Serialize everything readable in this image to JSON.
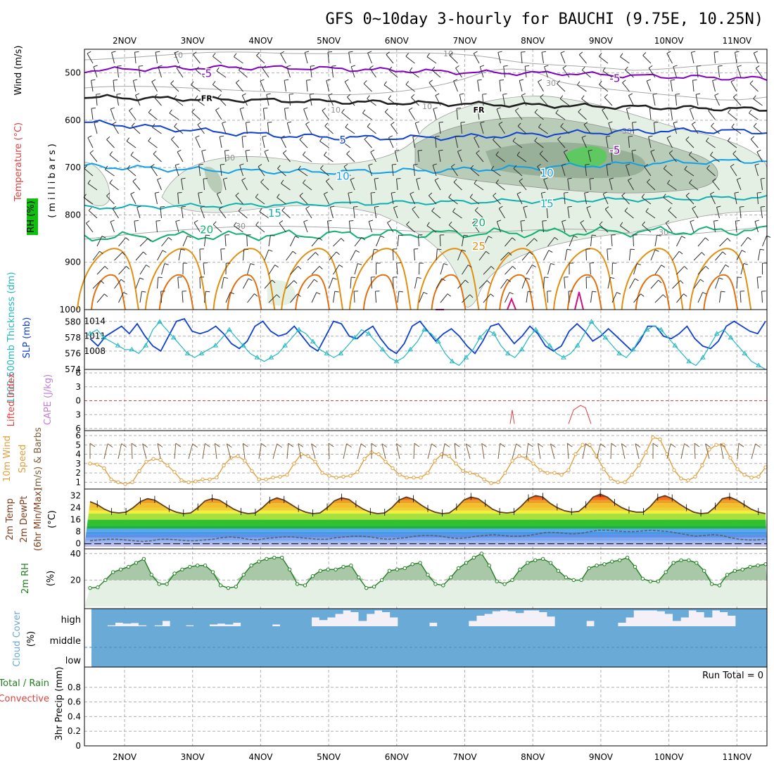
{
  "title": "GFS 0~10day 3-hourly for BAUCHI (9.75E, 10.25N)",
  "date_labels": [
    "2NOV",
    "3NOV",
    "4NOV",
    "5NOV",
    "6NOV",
    "7NOV",
    "8NOV",
    "9NOV",
    "10NOV",
    "11NOV"
  ],
  "colors": {
    "purple": "#8000c0",
    "blue": "#1040d0",
    "lightblue": "#10a0e8",
    "teal": "#10b0b0",
    "green": "#10b070",
    "orange": "#e09010",
    "darkorange": "#e07010",
    "magenta": "#d01080",
    "cyan": "#20b8c0",
    "wind": "#806040",
    "wind10": "#e0a040",
    "rh": "#208020",
    "cloud": "#6aaad6",
    "lifted": "#e04040",
    "cape": "#c080d0"
  },
  "chart_data": [
    {
      "type": "contour",
      "name": "upper_air",
      "ylabel": "(millibars)",
      "y_axis_title_parts": [
        {
          "text": "Wind (m/s)",
          "color": "#000000"
        },
        {
          "text": "Temperature (°C)",
          "color": "#e04040"
        },
        {
          "text": "RH (%)",
          "color": "#208020"
        }
      ],
      "yticks": [
        500,
        600,
        700,
        800,
        900,
        1000
      ],
      "ylim": [
        450,
        1000
      ],
      "temperature_labels": [
        {
          "label": "-5",
          "p": 500,
          "time": "3NOV"
        },
        {
          "label": "-5",
          "p": 510,
          "time": "9NOV"
        },
        {
          "label": "FR",
          "p": 550,
          "time": "3NOV"
        },
        {
          "label": "FR",
          "p": 575,
          "time": "7NOV"
        },
        {
          "label": "5",
          "p": 640,
          "time": "5NOV"
        },
        {
          "label": "-5",
          "p": 662,
          "time": "9NOV"
        },
        {
          "label": "10",
          "p": 717,
          "time": "5NOV"
        },
        {
          "label": "10",
          "p": 710,
          "time": "8NOV"
        },
        {
          "label": "15",
          "p": 795,
          "time": "4NOV"
        },
        {
          "label": "15",
          "p": 775,
          "time": "8NOV"
        },
        {
          "label": "20",
          "p": 830,
          "time": "3NOV"
        },
        {
          "label": "20",
          "p": 815,
          "time": "7NOV"
        },
        {
          "label": "25",
          "p": 865,
          "time": "7NOV"
        }
      ],
      "rh_labels": [
        "10",
        "10",
        "10",
        "10",
        "30",
        "30",
        "30",
        "30",
        "30"
      ]
    },
    {
      "type": "line",
      "name": "thickness_slp",
      "ylabel_left": "1000-500mb Thickness (dm)",
      "ylabel_right": "SLP (mb)",
      "thickness_ticks": [
        574,
        576,
        578,
        580
      ],
      "slp_ticks": [
        1008,
        1011,
        1014
      ],
      "thickness_range": [
        574,
        581
      ],
      "slp_series": [
        1010.5,
        1009,
        1011,
        1012,
        1013,
        1011.5,
        1013.5,
        1011,
        1009,
        1008,
        1011,
        1014,
        1014.5,
        1012,
        1011.5,
        1012,
        1013,
        1011.5,
        1009.5,
        1008.5,
        1010,
        1013,
        1014,
        1012,
        1011,
        1011.5,
        1013,
        1011,
        1009,
        1008,
        1011,
        1014,
        1013.5,
        1011,
        1010.5,
        1012,
        1013,
        1010.5,
        1008.5,
        1007.5,
        1009.5,
        1013,
        1014,
        1012,
        1010,
        1011.5,
        1012.5,
        1011,
        1009,
        1007.5,
        1010,
        1013,
        1013.5,
        1011.5,
        1009.5,
        1011,
        1013,
        1011.5,
        1009,
        1008,
        1009,
        1012,
        1013.5,
        1012,
        1010,
        1011,
        1012.5,
        1011,
        1009.5,
        1008,
        1010,
        1013,
        1013,
        1011,
        1010.5,
        1011.5,
        1013,
        1010.5,
        1009,
        1008.5,
        1010,
        1013,
        1014,
        1013,
        1012,
        1011.5,
        1014
      ],
      "thickness_series": [
        578.5,
        579,
        578,
        577.5,
        577,
        576.5,
        576.5,
        576,
        577,
        579,
        580,
        579,
        578,
        577,
        576,
        575.5,
        576,
        576.5,
        577,
        578,
        579,
        578,
        577,
        576,
        575.5,
        575,
        575.5,
        576,
        577,
        578,
        579,
        578.5,
        577.5,
        576.5,
        576,
        575.5,
        576,
        577,
        578,
        579,
        578.5,
        577.5,
        576.5,
        575.5,
        575,
        575.5,
        576.5,
        577.5,
        579,
        578.5,
        577.5,
        576,
        575,
        574.5,
        575.5,
        576.5,
        578,
        579,
        578.5,
        577,
        576,
        575.5,
        576.5,
        578,
        579,
        578,
        577,
        576,
        575.5,
        576,
        577,
        578.5,
        580,
        579,
        578,
        577,
        576,
        575.5,
        576.5,
        578,
        579,
        579.5,
        579,
        578,
        577,
        576,
        575,
        574.5,
        575.5,
        577,
        578.5,
        579,
        578,
        577,
        576,
        575,
        574.5,
        574
      ]
    },
    {
      "type": "line",
      "name": "lifted_index_cape",
      "ylabel_left": "Lifted Index",
      "ylabel_right": "CAPE (J/kg)",
      "yticks_labels": [
        "6",
        "3",
        "0",
        "3",
        "6"
      ],
      "ylim": [
        -6,
        6
      ],
      "lifted_index_spike_values": [
        5,
        2,
        1,
        1.5,
        5
      ],
      "zero_line": 0
    },
    {
      "type": "line",
      "name": "wind10m",
      "ylabel": "10m Wind Speed & Barbs (m/s)",
      "yticks": [
        1,
        2,
        3,
        4,
        5,
        6
      ],
      "ylim": [
        0.5,
        6.3
      ],
      "values": [
        3.0,
        2.9,
        2.5,
        1.3,
        1.0,
        0.8,
        1.0,
        2.2,
        3.2,
        3.5,
        3.4,
        2.8,
        2.1,
        1.2,
        1.0,
        1.1,
        1.3,
        1.3,
        1.5,
        2.8,
        3.6,
        3.8,
        3.3,
        2.2,
        1.3,
        1.3,
        1.5,
        1.6,
        1.8,
        3.0,
        4.0,
        3.8,
        3.2,
        2.0,
        1.7,
        1.5,
        1.6,
        1.7,
        2.1,
        3.5,
        4.2,
        4.0,
        3.2,
        2.5,
        1.8,
        1.5,
        1.5,
        1.5,
        2.0,
        3.3,
        4.0,
        3.8,
        3.0,
        2.2,
        2.0,
        1.8,
        1.3,
        0.9,
        1.0,
        2.0,
        3.3,
        3.8,
        3.6,
        3.0,
        2.3,
        2.0,
        2.0,
        1.8,
        2.3,
        4.0,
        5.0,
        5.0,
        3.8,
        2.4,
        1.4,
        1.0,
        1.0,
        1.8,
        2.8,
        4.2,
        5.8,
        5.6,
        4.0,
        2.3,
        1.4,
        1.2,
        1.6,
        2.8,
        4.5,
        5.0,
        5.0,
        3.6,
        2.4,
        1.8,
        1.5,
        1.6,
        2.6
      ]
    },
    {
      "type": "area",
      "name": "temp_dewpoint",
      "ylabel": "2m Temp 2m DewPt (6hr Min/Max) (°C)",
      "yticks": [
        0,
        8,
        16,
        24,
        32
      ],
      "ylim": [
        -2,
        35
      ],
      "temperature": [
        28.0,
        26.0,
        23.0,
        21.0,
        20.5,
        21.0,
        24.0,
        28.0,
        30.0,
        29.0,
        26.0,
        23.0,
        21.0,
        20.0,
        20.5,
        24.0,
        28.5,
        30.0,
        29.0,
        26.0,
        23.0,
        21.0,
        20.0,
        20.5,
        24.0,
        28.5,
        30.5,
        29.0,
        26.0,
        23.0,
        21.0,
        20.0,
        20.5,
        24.0,
        28.5,
        30.5,
        29.5,
        26.0,
        23.0,
        21.0,
        20.0,
        20.5,
        24.0,
        29.0,
        31.0,
        29.5,
        26.0,
        23.0,
        21.0,
        20.0,
        20.5,
        24.0,
        29.0,
        31.0,
        30.0,
        26.5,
        23.0,
        21.0,
        20.5,
        21.0,
        25.0,
        30.0,
        32.0,
        31.0,
        27.0,
        24.0,
        22.0,
        21.0,
        21.5,
        25.5,
        31.0,
        33.0,
        31.0,
        27.0,
        24.0,
        22.0,
        21.0,
        21.0,
        25.0,
        30.5,
        32.0,
        30.0,
        26.5,
        23.5,
        21.0,
        20.0,
        20.5,
        24.5,
        30.0,
        31.0,
        29.0,
        26.0,
        23.0,
        21.0,
        20.0
      ],
      "dewpoint": [
        2.0,
        2.5,
        3.0,
        3.0,
        2.5,
        2.0,
        1.5,
        2.0,
        3.0,
        3.0,
        2.5,
        2.0,
        2.0,
        2.5,
        3.0,
        4.0,
        4.5,
        4.0,
        3.0,
        2.5,
        3.5,
        4.0,
        4.5,
        4.5,
        4.0,
        3.5,
        3.0,
        3.0,
        4.0,
        4.5,
        5.0,
        5.0,
        4.5,
        3.5,
        3.0,
        3.5,
        4.0,
        5.0,
        5.5,
        5.5,
        5.0,
        4.0,
        3.5,
        4.0,
        5.0,
        5.5,
        6.0,
        5.5,
        5.0,
        5.0,
        5.5,
        6.5,
        7.5,
        7.5,
        7.0,
        6.5,
        7.0,
        8.0,
        9.0,
        9.0,
        8.5,
        8.0,
        8.0,
        8.5,
        9.0,
        8.5,
        8.0,
        7.0,
        6.0,
        5.0,
        5.5,
        6.0,
        5.5,
        4.0,
        3.0,
        2.5,
        2.5,
        3.0
      ]
    },
    {
      "type": "area",
      "name": "rh2m",
      "ylabel": "2m RH (%)",
      "yticks": [
        20,
        40
      ],
      "ylim": [
        0,
        42
      ],
      "values": [
        14,
        14.5,
        20,
        26,
        28,
        30,
        33,
        36,
        24,
        17,
        17,
        25,
        28,
        30,
        31,
        31,
        26,
        16,
        14,
        15,
        24,
        31,
        34,
        36,
        37,
        37,
        28,
        17,
        16,
        23,
        27,
        28,
        28,
        30,
        31,
        22,
        14,
        15,
        20,
        27,
        28,
        29,
        32,
        33,
        24,
        17,
        16,
        22,
        29,
        33,
        37,
        40,
        31,
        19,
        17,
        20,
        28,
        33,
        35,
        36,
        33,
        27,
        22,
        20,
        20,
        29,
        31,
        32,
        34,
        35,
        37,
        30,
        21,
        19,
        19,
        26,
        33,
        35,
        35,
        33,
        27,
        17,
        16,
        24,
        27,
        28,
        30,
        31,
        32
      ]
    },
    {
      "type": "area",
      "name": "cloud_cover",
      "ylabel": "Cloud Cover (%)",
      "levels": [
        "high",
        "middle",
        "low"
      ],
      "high_cover_fraction": [
        0.0,
        0.0,
        0.05,
        0.2,
        0.15,
        0.18,
        0.05,
        0.0,
        0.05,
        0.3,
        0.0,
        0.0,
        0.05,
        0.0,
        0.0,
        0.1,
        0.15,
        0.1,
        0.2,
        0.0,
        0.0,
        0.0,
        0.0,
        0.1,
        0.0,
        0.0,
        0.0,
        0.0,
        0.5,
        0.35,
        0.5,
        0.7,
        0.9,
        0.8,
        0.3,
        0.7,
        0.9,
        0.8,
        0.5,
        0.0,
        0.0,
        0.0,
        0.0,
        0.2,
        0.0,
        0.0,
        0.0,
        0.0,
        0.3,
        0.6,
        0.7,
        0.85,
        0.9,
        0.85,
        0.75,
        0.9,
        0.9,
        0.8,
        0.55,
        0.0,
        0.0,
        0.0,
        0.0,
        0.3,
        0.0,
        0.0,
        0.0,
        0.2,
        0.5,
        0.9,
        0.9,
        0.9,
        0.85,
        0.7,
        0.3,
        0.5,
        0.9,
        0.8,
        0.5,
        0.9,
        0.8,
        0.6,
        0.0,
        0.0,
        0.0,
        0.0
      ],
      "middle_cover": 1.0,
      "low_cover": 1.0
    },
    {
      "type": "bar",
      "name": "precip",
      "ylabel_left": "Total / Rain",
      "ylabel_left2": "Convective",
      "ylabel": "3hr Precip (mm)",
      "yticks": [
        0,
        0.2,
        0.4,
        0.6,
        0.8
      ],
      "ylim": [
        0,
        1
      ],
      "annotation": "Run Total = 0",
      "values": []
    }
  ],
  "panel_labels": {
    "millibars": "(millibars)",
    "wind_lbl": "Wind (m/s)",
    "temp_lbl": "Temperature (°C)",
    "rh_lbl": "RH (%)",
    "thick_lbl": "1000-500mb Thickness (dm)",
    "slp_lbl": "SLP (mb)",
    "li_lbl": "Lifted Index",
    "cape_lbl": "CAPE (J/kg)",
    "wind10_a": "10m Wind",
    "wind10_b": "Speed",
    "wind10_c": "(m/s) & Barbs",
    "temp_a": "2m Temp",
    "temp_b": "2m DewPt",
    "temp_c": "(6hr Min/Max)",
    "temp_d": "(°C)",
    "rh2_a": "2m RH",
    "rh2_b": "(%)",
    "cloud_a": "Cloud Cover",
    "cloud_b": "(%)",
    "precip_a": "Total / Rain",
    "precip_b": "Convective",
    "precip_c": "3hr Precip (mm)"
  }
}
